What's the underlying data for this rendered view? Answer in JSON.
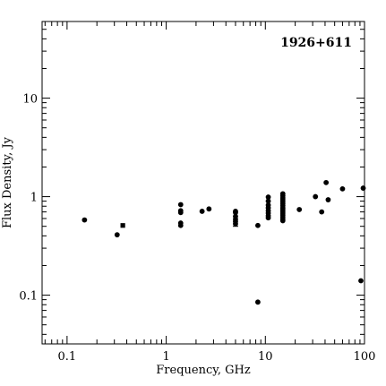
{
  "chart_data": {
    "type": "scatter",
    "title": "1926+611",
    "xlabel": "Frequency, GHz",
    "ylabel": "Flux Density, Jy",
    "xscale": "log",
    "yscale": "log",
    "xlim": [
      0.056,
      100
    ],
    "ylim": [
      0.032,
      60
    ],
    "x_ticks": [
      0.1,
      1,
      10,
      100
    ],
    "x_tick_labels": [
      "0.1",
      "1",
      "10",
      "100"
    ],
    "y_ticks": [
      0.1,
      1,
      10
    ],
    "y_tick_labels": [
      "0.1",
      "1",
      "10"
    ],
    "grid": false,
    "legend": "none",
    "series": [
      {
        "marker": "circle",
        "points": [
          [
            0.15,
            0.58
          ],
          [
            0.32,
            0.41
          ],
          [
            1.4,
            0.83
          ],
          [
            1.4,
            0.72
          ],
          [
            1.4,
            0.69
          ],
          [
            1.4,
            0.54
          ],
          [
            1.4,
            0.51
          ],
          [
            2.3,
            0.71
          ],
          [
            2.7,
            0.75
          ],
          [
            5.0,
            0.71
          ],
          [
            5.0,
            0.69
          ],
          [
            5.0,
            0.63
          ],
          [
            5.0,
            0.59
          ],
          [
            5.0,
            0.56
          ],
          [
            5.0,
            0.53
          ],
          [
            8.4,
            0.51
          ],
          [
            8.4,
            0.085
          ],
          [
            10.7,
            0.99
          ],
          [
            10.7,
            0.9
          ],
          [
            10.7,
            0.82
          ],
          [
            10.7,
            0.77
          ],
          [
            10.7,
            0.72
          ],
          [
            10.7,
            0.68
          ],
          [
            10.7,
            0.64
          ],
          [
            10.7,
            0.61
          ],
          [
            15,
            1.07
          ],
          [
            15,
            1.02
          ],
          [
            15,
            0.97
          ],
          [
            15,
            0.93
          ],
          [
            15,
            0.89
          ],
          [
            15,
            0.85
          ],
          [
            15,
            0.81
          ],
          [
            15,
            0.77
          ],
          [
            15,
            0.74
          ],
          [
            15,
            0.71
          ],
          [
            15,
            0.68
          ],
          [
            15,
            0.65
          ],
          [
            15,
            0.62
          ],
          [
            15,
            0.59
          ],
          [
            15,
            0.57
          ],
          [
            22,
            0.74
          ],
          [
            32,
            1.0
          ],
          [
            37,
            0.7
          ],
          [
            41,
            1.39
          ],
          [
            43,
            0.93
          ],
          [
            60,
            1.2
          ],
          [
            92,
            0.14
          ],
          [
            97,
            1.22
          ]
        ]
      },
      {
        "marker": "square",
        "points": [
          [
            0.365,
            0.51
          ]
        ]
      }
    ],
    "error_bars": [
      {
        "x": 5.0,
        "y": 0.53,
        "low": 0.5,
        "high": 0.58
      }
    ]
  }
}
